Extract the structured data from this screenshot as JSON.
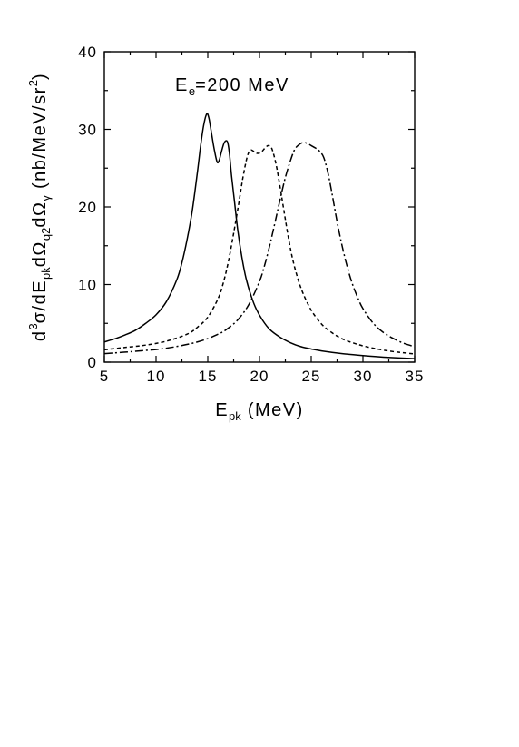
{
  "chart_data": {
    "type": "line",
    "annotation": {
      "main": "E",
      "sub": "e",
      "rest": "=200 MeV"
    },
    "xlabel": {
      "main": "E",
      "sub": "pk",
      "rest": " (MeV)"
    },
    "ylabel": {
      "parts": [
        "d",
        "3",
        "σ/dE",
        "pk",
        "dΩ",
        "q2",
        "dΩ",
        "γ",
        " (nb/MeV/sr",
        "2",
        ")"
      ]
    },
    "xlim": [
      5,
      35
    ],
    "ylim": [
      0,
      40
    ],
    "xticks": [
      5,
      10,
      15,
      20,
      25,
      30,
      35
    ],
    "yticks": [
      0,
      10,
      20,
      30,
      40
    ],
    "grid": false,
    "series": [
      {
        "style": "solid",
        "x": [
          5,
          6,
          7,
          8,
          9,
          10,
          11,
          12,
          12.5,
          13,
          13.5,
          14,
          14.3,
          14.6,
          14.9,
          15.1,
          15.3,
          15.6,
          15.9,
          16.1,
          16.3,
          16.6,
          16.9,
          17.1,
          17.3,
          17.6,
          17.9,
          18.3,
          18.7,
          19.2,
          19.7,
          20.3,
          21,
          22,
          23,
          24,
          25,
          26,
          28,
          30,
          32,
          35
        ],
        "y": [
          2.6,
          3.0,
          3.5,
          4.1,
          5.0,
          6.1,
          7.8,
          10.6,
          12.8,
          15.8,
          19.5,
          24.5,
          27.8,
          30.5,
          32.0,
          31.5,
          30.0,
          27.6,
          25.8,
          26.0,
          27.0,
          28.3,
          28.4,
          26.8,
          24.0,
          20.5,
          17.0,
          13.5,
          10.8,
          8.5,
          6.8,
          5.4,
          4.2,
          3.2,
          2.5,
          2.0,
          1.7,
          1.45,
          1.1,
          0.85,
          0.65,
          0.45
        ]
      },
      {
        "style": "dashed",
        "x": [
          5,
          7,
          9,
          11,
          13,
          14,
          15,
          16,
          16.5,
          17,
          17.5,
          18,
          18.4,
          18.8,
          19.1,
          19.4,
          19.8,
          20.2,
          20.6,
          20.9,
          21.2,
          21.6,
          22,
          22.4,
          22.8,
          23.2,
          23.7,
          24.2,
          25,
          26,
          27,
          28,
          29,
          30,
          31,
          32,
          33,
          35
        ],
        "y": [
          1.6,
          1.9,
          2.2,
          2.7,
          3.6,
          4.5,
          5.8,
          8.2,
          10.2,
          13.0,
          16.6,
          20.5,
          23.8,
          26.4,
          27.3,
          27.2,
          26.9,
          27.1,
          27.7,
          27.9,
          27.5,
          25.5,
          22.5,
          19.2,
          16.0,
          13.3,
          10.8,
          8.9,
          6.7,
          4.9,
          3.8,
          3.0,
          2.5,
          2.1,
          1.8,
          1.55,
          1.35,
          1.05
        ]
      },
      {
        "style": "dash-dot",
        "x": [
          5,
          8,
          11,
          14,
          16,
          17,
          18,
          19,
          20,
          20.5,
          21,
          21.5,
          22,
          22.5,
          23,
          23.4,
          23.8,
          24.2,
          24.6,
          25,
          25.4,
          25.8,
          26.2,
          26.6,
          27,
          27.5,
          28,
          28.5,
          29,
          29.5,
          30,
          31,
          32,
          33,
          34,
          35
        ],
        "y": [
          1.1,
          1.4,
          1.8,
          2.6,
          3.6,
          4.4,
          5.6,
          7.5,
          10.4,
          12.5,
          15.1,
          18.0,
          21.0,
          23.8,
          26.0,
          27.4,
          28.0,
          28.3,
          28.2,
          27.9,
          27.6,
          27.2,
          26.4,
          24.5,
          21.8,
          18.1,
          14.9,
          12.2,
          10.0,
          8.3,
          6.9,
          5.0,
          3.8,
          3.0,
          2.4,
          2.0
        ]
      }
    ]
  }
}
